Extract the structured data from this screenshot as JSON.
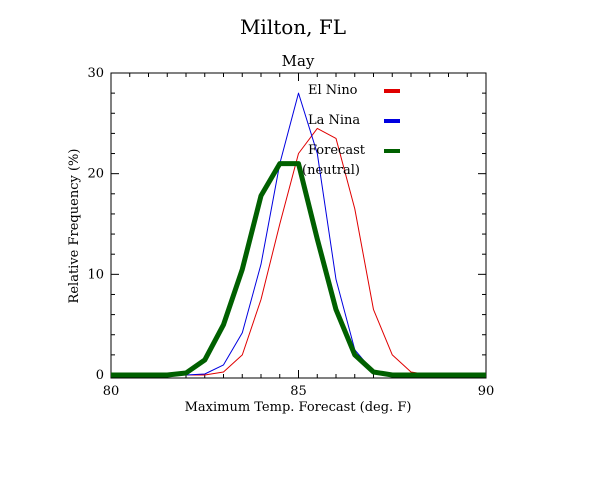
{
  "chart_data": {
    "type": "line",
    "title": "Milton, FL",
    "subtitle": "May",
    "xlabel": "Maximum Temp. Forecast (deg. F)",
    "ylabel": "Relative Frequency (%)",
    "xlim": [
      80,
      90
    ],
    "ylim": [
      0,
      30
    ],
    "x_ticks": [
      80,
      85,
      90
    ],
    "y_ticks": [
      0,
      10,
      20,
      30
    ],
    "x": [
      80.0,
      80.5,
      81.0,
      81.5,
      82.0,
      82.5,
      83.0,
      83.5,
      84.0,
      84.5,
      85.0,
      85.5,
      86.0,
      86.5,
      87.0,
      87.5,
      88.0,
      88.5,
      89.0,
      89.5,
      90.0
    ],
    "series": [
      {
        "name": "El Nino",
        "color": "#e00000",
        "values": [
          0,
          0,
          0,
          0,
          0,
          0,
          0.3,
          2,
          7.5,
          15,
          22,
          24.5,
          23.5,
          16.5,
          6.5,
          2,
          0.3,
          0,
          0,
          0,
          0
        ]
      },
      {
        "name": "La Nina",
        "color": "#0000e0",
        "values": [
          0,
          0,
          0,
          0,
          0,
          0.1,
          1,
          4.2,
          11,
          21,
          28,
          22,
          9.5,
          2.5,
          0.3,
          0,
          0,
          0,
          0,
          0,
          0
        ]
      },
      {
        "name": "Forecast",
        "name_line2": "(neutral)",
        "color": "#006000",
        "values": [
          0,
          0,
          0,
          0,
          0.2,
          1.5,
          5,
          10.5,
          17.8,
          21,
          21,
          13.5,
          6.5,
          2,
          0.3,
          0,
          0,
          0,
          0,
          0,
          0
        ]
      }
    ],
    "legend": "top-right"
  }
}
